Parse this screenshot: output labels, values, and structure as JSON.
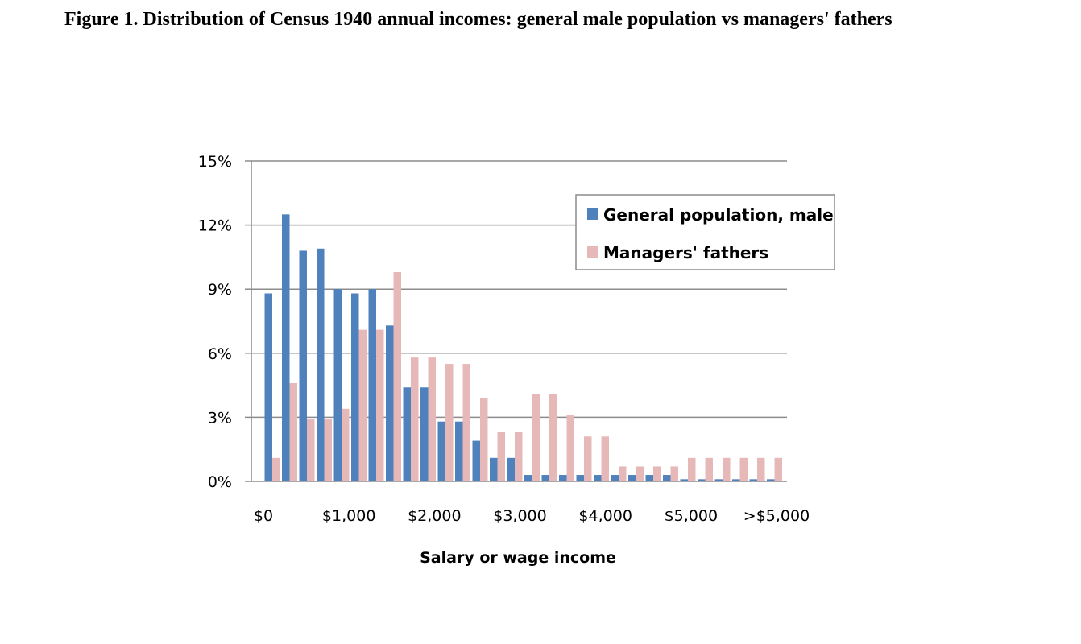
{
  "figure": {
    "title": "Figure 1. Distribution of Census 1940 annual incomes: general male population vs managers' fathers"
  },
  "chart_data": {
    "type": "bar",
    "xlabel": "Salary or wage income",
    "ylabel": "",
    "ylim": [
      0,
      15
    ],
    "y_ticks": [
      "0%",
      "3%",
      "6%",
      "9%",
      "12%",
      "15%"
    ],
    "x_tick_labels": [
      "$0",
      "$1,000",
      "$2,000",
      "$3,000",
      "$4,000",
      "$5,000",
      ">$5,000"
    ],
    "grid": true,
    "legend_position": "top-right",
    "colors": {
      "general": "#4f81bd",
      "managers": "#e6b9b8"
    },
    "series": [
      {
        "name": "General population, male",
        "values": [
          8.8,
          12.5,
          10.8,
          10.9,
          9.0,
          8.8,
          9.0,
          7.3,
          4.4,
          4.4,
          2.8,
          2.8,
          1.9,
          1.1,
          1.1,
          0.3,
          0.3,
          0.3,
          0.3,
          0.3,
          0.3,
          0.3,
          0.3,
          0.3,
          0.1,
          0.1,
          0.1,
          0.1,
          0.1,
          0.1
        ]
      },
      {
        "name": "Managers' fathers",
        "values": [
          1.1,
          4.6,
          2.9,
          2.9,
          3.4,
          7.1,
          7.1,
          9.8,
          5.8,
          5.8,
          5.5,
          5.5,
          3.9,
          2.3,
          2.3,
          4.1,
          4.1,
          3.1,
          2.1,
          2.1,
          0.7,
          0.7,
          0.7,
          0.7,
          1.1,
          1.1,
          1.1,
          1.1,
          1.1,
          1.1
        ]
      }
    ]
  }
}
